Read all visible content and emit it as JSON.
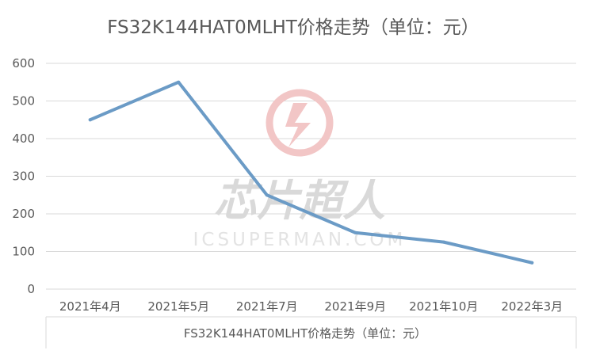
{
  "chart_data": {
    "type": "line",
    "title": "FS32K144HAT0MLHT价格走势（单位：元）",
    "xlabel": "FS32K144HAT0MLHT价格走势（单位：元）",
    "ylabel": "",
    "categories": [
      "2021年4月",
      "2021年5月",
      "2021年7月",
      "2021年9月",
      "2021年10月",
      "2022年3月"
    ],
    "series": [
      {
        "values": [
          450,
          550,
          250,
          150,
          125,
          70
        ]
      }
    ],
    "ylim": [
      0,
      600
    ],
    "yticks": [
      0,
      100,
      200,
      300,
      400,
      500,
      600
    ],
    "grid": true,
    "legend": "none",
    "line_color": "#6b9bc6",
    "grid_color": "#d9d9d9"
  },
  "watermark": {
    "text_cn": "芯片超人",
    "text_en": "ICSUPERMAN.COM",
    "logo_color": "#f2c6c6"
  }
}
